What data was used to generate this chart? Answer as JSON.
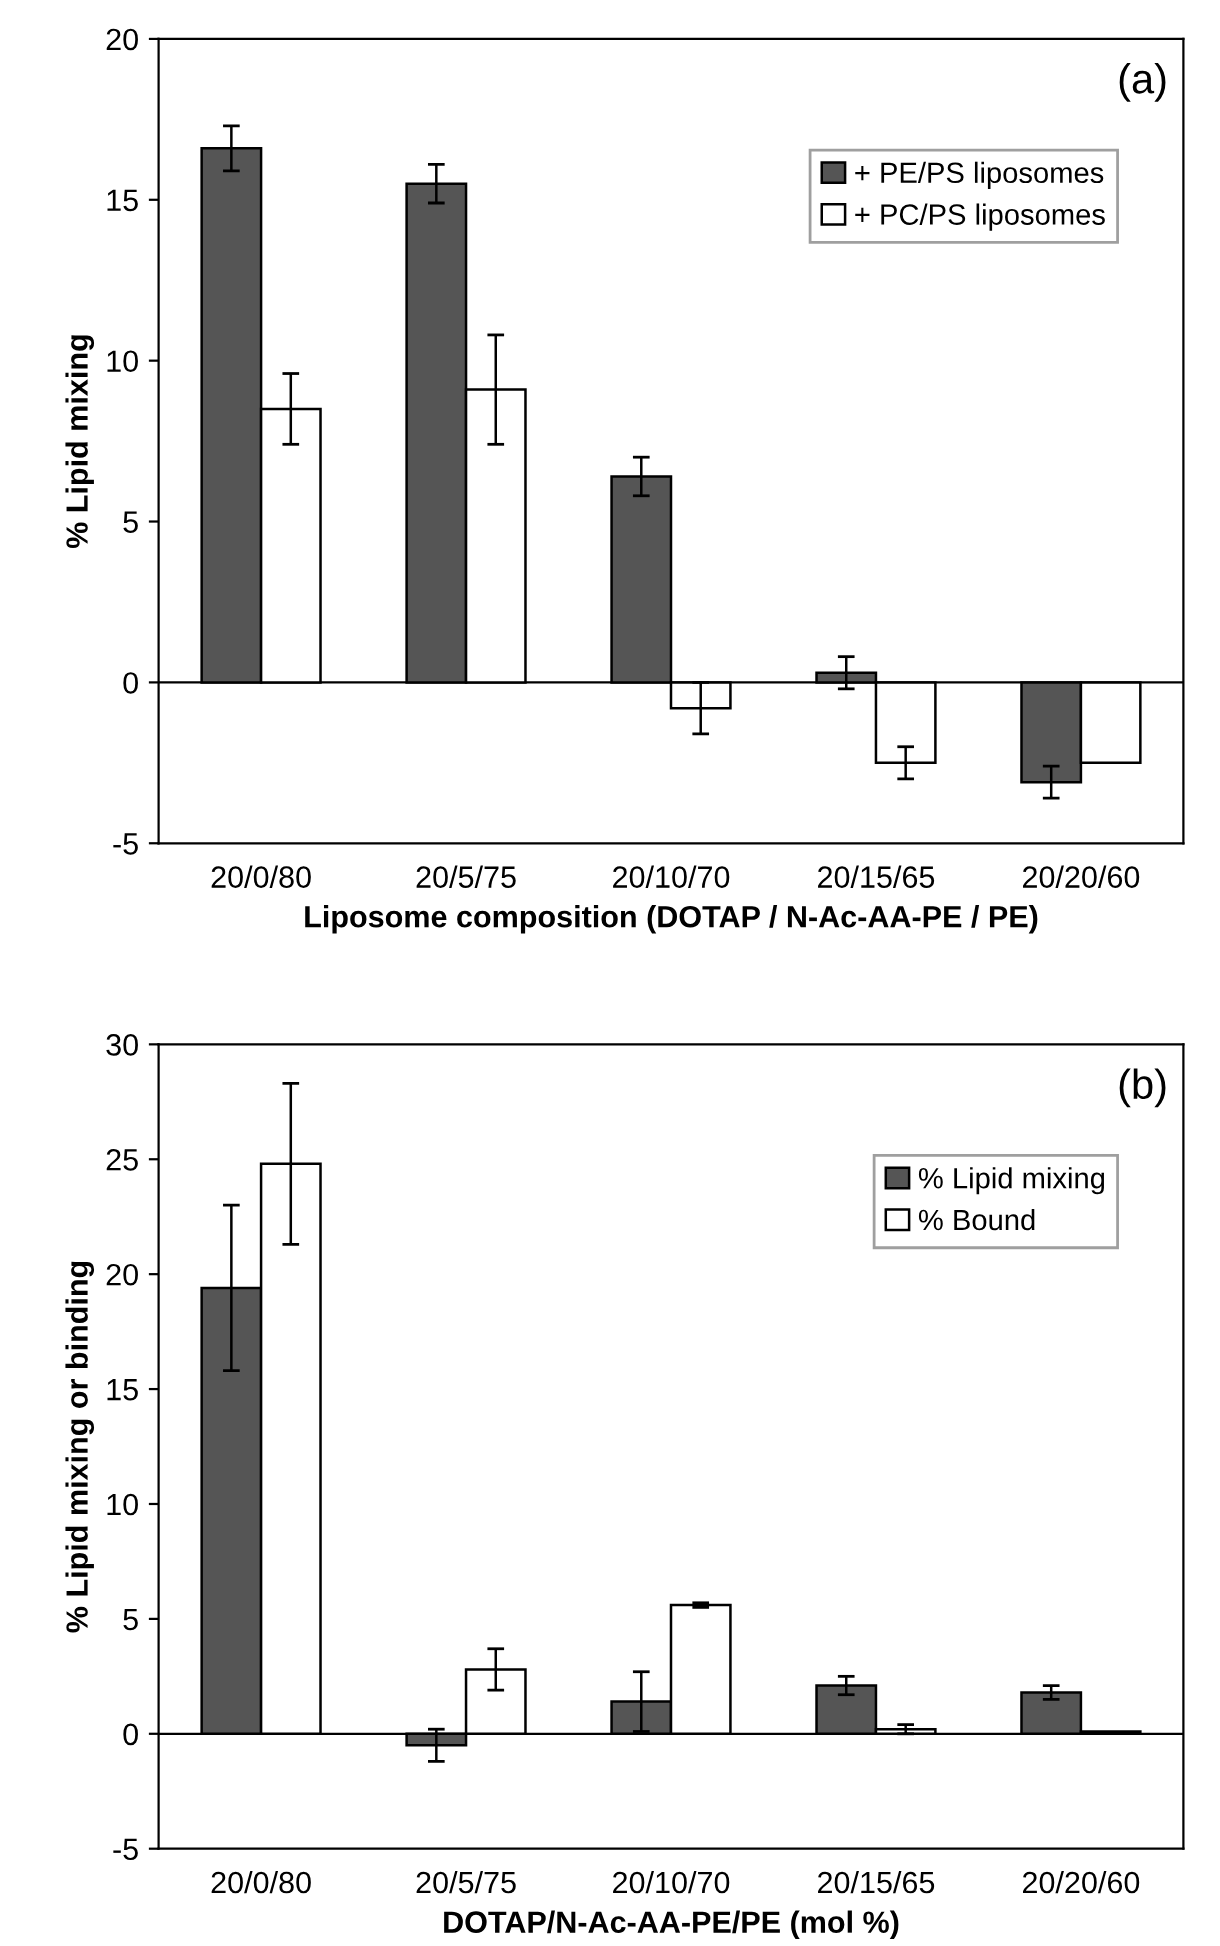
{
  "chart_data": [
    {
      "type": "bar",
      "xlabel": "Liposome composition (DOTAP / N-Ac-AA-PE / PE)",
      "ylabel": "% Lipid mixing",
      "annotations": [
        "(a)"
      ],
      "categories": [
        "20/0/80",
        "20/5/75",
        "20/10/70",
        "20/15/65",
        "20/20/60"
      ],
      "series": [
        {
          "name": "+ PE/PS liposomes",
          "color": "#555555",
          "values": [
            16.6,
            15.5,
            6.4,
            0.3,
            -3.1
          ],
          "errors": [
            0.7,
            0.6,
            0.6,
            0.5,
            0.5
          ]
        },
        {
          "name": "+ PC/PS liposomes",
          "color": "#ffffff",
          "values": [
            8.5,
            9.1,
            -0.8,
            -2.5,
            -2.5
          ],
          "errors": [
            1.1,
            1.7,
            0.8,
            0.5,
            null
          ]
        }
      ],
      "ylim": [
        -5,
        20
      ],
      "yticks": [
        -5,
        0,
        5,
        10,
        15,
        20
      ],
      "ref_lines": [
        {
          "axis": "y",
          "value": 0,
          "color": "#000000"
        }
      ],
      "legend": "top right"
    },
    {
      "type": "bar",
      "xlabel": "DOTAP/N-Ac-AA-PE/PE (mol %)",
      "ylabel": "% Lipid mixing or binding",
      "annotations": [
        "(b)"
      ],
      "categories": [
        "20/0/80",
        "20/5/75",
        "20/10/70",
        "20/15/65",
        "20/20/60"
      ],
      "series": [
        {
          "name": "% Lipid mixing",
          "color": "#555555",
          "values": [
            19.4,
            -0.5,
            1.4,
            2.1,
            1.8
          ],
          "errors": [
            3.6,
            0.7,
            1.3,
            0.4,
            0.3
          ]
        },
        {
          "name": "% Bound",
          "color": "#ffffff",
          "values": [
            24.8,
            2.8,
            5.6,
            0.2,
            0.1
          ],
          "errors": [
            3.5,
            0.9,
            0.1,
            0.2,
            null
          ]
        }
      ],
      "ylim": [
        -5,
        30
      ],
      "yticks": [
        -5,
        0,
        5,
        10,
        15,
        20,
        25,
        30
      ],
      "ref_lines": [
        {
          "axis": "y",
          "value": 0,
          "color": "#000000"
        }
      ],
      "legend": "top right"
    }
  ]
}
